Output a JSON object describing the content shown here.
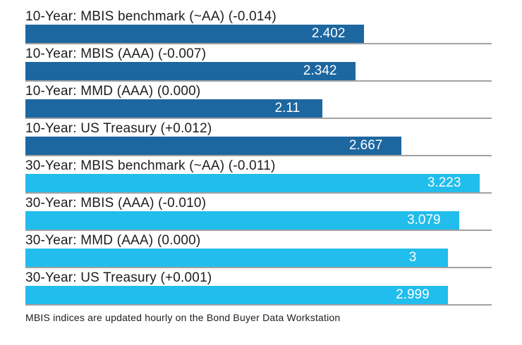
{
  "chart_data": {
    "type": "bar",
    "orientation": "horizontal",
    "title": "",
    "xlabel": "",
    "ylabel": "",
    "xlim": [
      0,
      3.31
    ],
    "grid": false,
    "legend": "none",
    "value_labels_position": "inside-right",
    "colors": {
      "10-year": "#1d67a0",
      "30-year": "#21bdec",
      "value_label_text": "#ffffff",
      "baseline": "#a2a2a2",
      "label_text": "#1d1d1f"
    },
    "series": [
      {
        "label": "10-Year: MBIS benchmark (~AA) (-0.014)",
        "value": 2.402,
        "display": "2.402",
        "group": "10-year"
      },
      {
        "label": "10-Year: MBIS (AAA) (-0.007)",
        "value": 2.342,
        "display": "2.342",
        "group": "10-year"
      },
      {
        "label": "10-Year: MMD (AAA) (0.000)",
        "value": 2.11,
        "display": "2.11",
        "group": "10-year"
      },
      {
        "label": "10-Year: US Treasury (+0.012)",
        "value": 2.667,
        "display": "2.667",
        "group": "10-year"
      },
      {
        "label": "30-Year: MBIS benchmark (~AA) (-0.011)",
        "value": 3.223,
        "display": "3.223",
        "group": "30-year"
      },
      {
        "label": "30-Year: MBIS (AAA) (-0.010)",
        "value": 3.079,
        "display": "3.079",
        "group": "30-year"
      },
      {
        "label": "30-Year: MMD (AAA) (0.000)",
        "value": 3.0,
        "display": "3",
        "group": "30-year"
      },
      {
        "label": "30-Year: US Treasury (+0.001)",
        "value": 2.999,
        "display": "2.999",
        "group": "30-year"
      }
    ],
    "footnote": "MBIS indices are updated hourly on the Bond Buyer Data Workstation"
  }
}
